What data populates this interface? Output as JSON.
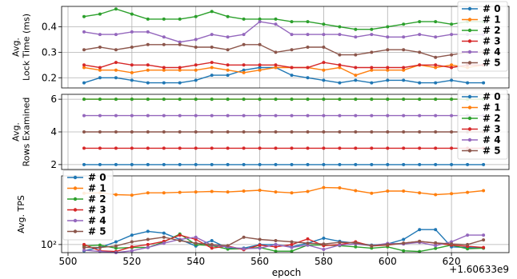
{
  "chart_data": {
    "type": "line",
    "x_tick_labels": [
      "500",
      "520",
      "540",
      "560",
      "580",
      "600",
      "620"
    ],
    "x_offset_label": "+1.60633e9",
    "xlabel": "epoch",
    "xlim": [
      498,
      638
    ],
    "colors": [
      "#1f77b4",
      "#ff7f0e",
      "#2ca02c",
      "#d62728",
      "#9467bd",
      "#8c564b"
    ],
    "legend_labels": [
      "# 0",
      "# 1",
      "# 2",
      "# 3",
      "# 4",
      "# 5"
    ],
    "x": [
      505,
      510,
      515,
      520,
      525,
      530,
      535,
      540,
      545,
      550,
      555,
      560,
      565,
      570,
      575,
      580,
      585,
      590,
      595,
      600,
      605,
      610,
      615,
      620,
      625,
      630
    ],
    "panels": [
      {
        "ylabel": "Avg.\nLock Time (ms)",
        "ylim": [
          0.16,
          0.48
        ],
        "yscale": "linear",
        "yticks": [
          0.2,
          0.3,
          0.4
        ],
        "ytick_labels": [
          "0.2",
          "0.3",
          "0.4"
        ],
        "legend_position": "right",
        "series": [
          {
            "name": "# 0",
            "values": [
              0.18,
              0.2,
              0.2,
              0.19,
              0.18,
              0.18,
              0.18,
              0.19,
              0.21,
              0.21,
              0.23,
              0.24,
              0.24,
              0.21,
              0.2,
              0.19,
              0.18,
              0.19,
              0.18,
              0.19,
              0.19,
              0.18,
              0.18,
              0.19,
              0.18,
              0.18
            ]
          },
          {
            "name": "# 1",
            "values": [
              0.24,
              0.23,
              0.23,
              0.22,
              0.23,
              0.23,
              0.23,
              0.23,
              0.24,
              0.23,
              0.22,
              0.23,
              0.24,
              0.24,
              0.24,
              0.23,
              0.24,
              0.21,
              0.23,
              0.23,
              0.23,
              0.25,
              0.24,
              0.25,
              0.24,
              0.25
            ]
          },
          {
            "name": "# 2",
            "values": [
              0.44,
              0.45,
              0.47,
              0.45,
              0.43,
              0.43,
              0.43,
              0.44,
              0.46,
              0.44,
              0.43,
              0.43,
              0.43,
              0.42,
              0.42,
              0.41,
              0.4,
              0.39,
              0.39,
              0.4,
              0.41,
              0.42,
              0.42,
              0.41,
              0.42,
              0.42
            ]
          },
          {
            "name": "# 3",
            "values": [
              0.25,
              0.24,
              0.26,
              0.25,
              0.25,
              0.24,
              0.24,
              0.25,
              0.26,
              0.25,
              0.25,
              0.25,
              0.25,
              0.24,
              0.24,
              0.26,
              0.25,
              0.24,
              0.24,
              0.24,
              0.24,
              0.25,
              0.25,
              0.24,
              0.25,
              0.25
            ]
          },
          {
            "name": "# 4",
            "values": [
              0.38,
              0.37,
              0.37,
              0.38,
              0.38,
              0.36,
              0.34,
              0.35,
              0.37,
              0.36,
              0.37,
              0.42,
              0.41,
              0.37,
              0.37,
              0.37,
              0.37,
              0.36,
              0.37,
              0.36,
              0.36,
              0.37,
              0.36,
              0.37,
              0.37,
              0.37
            ]
          },
          {
            "name": "# 5",
            "values": [
              0.31,
              0.32,
              0.31,
              0.32,
              0.33,
              0.33,
              0.33,
              0.32,
              0.32,
              0.31,
              0.33,
              0.33,
              0.3,
              0.31,
              0.32,
              0.32,
              0.29,
              0.29,
              0.3,
              0.31,
              0.31,
              0.3,
              0.28,
              0.29,
              0.3,
              0.3
            ]
          }
        ]
      },
      {
        "ylabel": "Avg.\nRows Examined",
        "ylim": [
          1.7,
          6.3
        ],
        "yscale": "linear",
        "yticks": [
          2,
          4,
          6
        ],
        "ytick_labels": [
          "2",
          "4",
          "6"
        ],
        "legend_position": "right",
        "series": [
          {
            "name": "# 0",
            "values": [
              2,
              2,
              2,
              2,
              2,
              2,
              2,
              2,
              2,
              2,
              2,
              2,
              2,
              2,
              2,
              2,
              2,
              2,
              2,
              2,
              2,
              2,
              2,
              2,
              2,
              2
            ]
          },
          {
            "name": "# 1",
            "values": [
              6,
              6,
              6,
              6,
              6,
              6,
              6,
              6,
              6,
              6,
              6,
              6,
              6,
              6,
              6,
              6,
              6,
              6,
              6,
              6,
              6,
              6,
              6,
              6,
              6,
              6
            ]
          },
          {
            "name": "# 2",
            "values": [
              6,
              6,
              6,
              6,
              6,
              6,
              6,
              6,
              6,
              6,
              6,
              6,
              6,
              6,
              6,
              6,
              6,
              6,
              6,
              6,
              6,
              6,
              6,
              6,
              6,
              6
            ]
          },
          {
            "name": "# 3",
            "values": [
              3,
              3,
              3,
              3,
              3,
              3,
              3,
              3,
              3,
              3,
              3,
              3,
              3,
              3,
              3,
              3,
              3,
              3,
              3,
              3,
              3,
              3,
              3,
              3,
              3,
              3
            ]
          },
          {
            "name": "# 4",
            "values": [
              5,
              5,
              5,
              5,
              5,
              5,
              5,
              5,
              5,
              5,
              5,
              5,
              5,
              5,
              5,
              5,
              5,
              5,
              5,
              5,
              5,
              5,
              5,
              5,
              5,
              5
            ]
          },
          {
            "name": "# 5",
            "values": [
              4,
              4,
              4,
              4,
              4,
              4,
              4,
              4,
              4,
              4,
              4,
              4,
              4,
              4,
              4,
              4,
              4,
              4,
              4,
              4,
              4,
              4,
              4,
              4,
              4,
              4
            ]
          }
        ]
      },
      {
        "ylabel": "Avg. TPS",
        "ylim": [
          75,
          1150
        ],
        "yscale": "log",
        "yticks": [
          100
        ],
        "ytick_labels": [
          "10²"
        ],
        "legend_position": "left",
        "series": [
          {
            "name": "# 0",
            "values": [
              80,
              90,
              110,
              140,
              160,
              150,
              120,
              95,
              115,
              88,
              88,
              100,
              100,
              92,
              105,
              125,
              112,
              105,
              98,
              102,
              120,
              170,
              170,
              92,
              90,
              88
            ]
          },
          {
            "name": "# 1",
            "values": [
              620,
              630,
              590,
              580,
              630,
              630,
              640,
              650,
              660,
              650,
              670,
              690,
              650,
              630,
              660,
              760,
              750,
              680,
              620,
              670,
              670,
              630,
              590,
              610,
              640,
              680
            ]
          },
          {
            "name": "# 2",
            "values": [
              95,
              98,
              88,
              90,
              90,
              110,
              145,
              100,
              96,
              85,
              86,
              90,
              79,
              79,
              98,
              98,
              96,
              92,
              88,
              92,
              80,
              78,
              87,
              98,
              86,
              88
            ]
          },
          {
            "name": "# 3",
            "values": [
              100,
              80,
              78,
              92,
              100,
              112,
              140,
              120,
              88,
              95,
              83,
              98,
              92,
              100,
              122,
              96,
              100,
              110,
              95,
              98,
              105,
              112,
              105,
              98,
              94,
              90
            ]
          },
          {
            "name": "# 4",
            "values": [
              82,
              78,
              75,
              80,
              90,
              105,
              120,
              130,
              98,
              92,
              86,
              88,
              100,
              90,
              98,
              84,
              98,
              102,
              96,
              104,
              102,
              108,
              96,
              110,
              140,
              140
            ]
          },
          {
            "name": "# 5",
            "values": [
              90,
              90,
              95,
              110,
              120,
              130,
              115,
              105,
              100,
              96,
              130,
              120,
              115,
              110,
              105,
              102,
              108,
              106,
              96,
              100,
              105,
              112,
              106,
              102,
              100,
              118
            ]
          }
        ]
      }
    ]
  }
}
